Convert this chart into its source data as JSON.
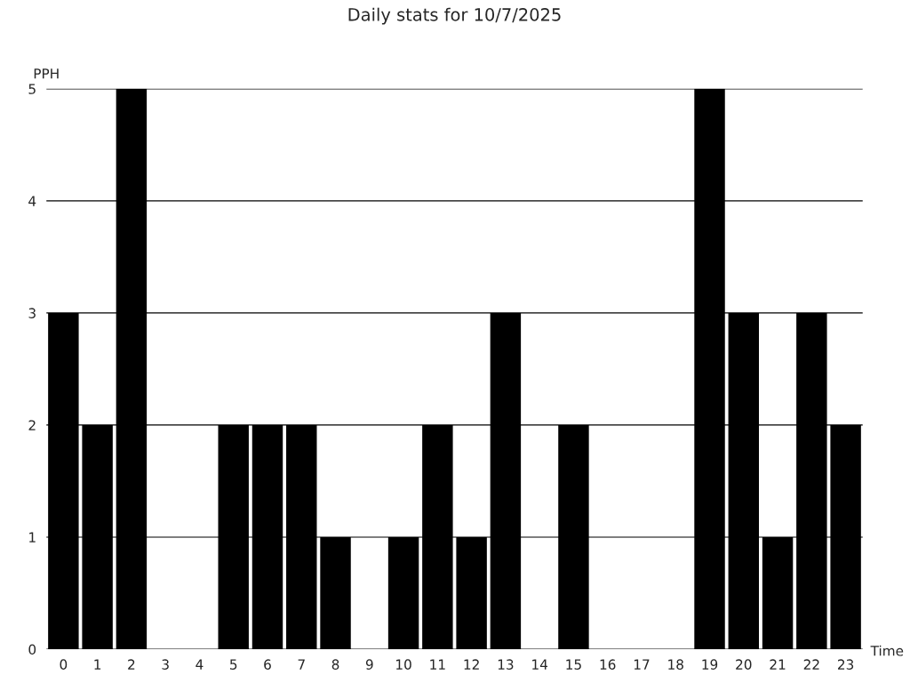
{
  "chart_data": {
    "type": "bar",
    "title": "Daily stats for 10/7/2025",
    "xlabel": "Time",
    "ylabel": "PPH",
    "categories": [
      "0",
      "1",
      "2",
      "3",
      "4",
      "5",
      "6",
      "7",
      "8",
      "9",
      "10",
      "11",
      "12",
      "13",
      "14",
      "15",
      "16",
      "17",
      "18",
      "19",
      "20",
      "21",
      "22",
      "23"
    ],
    "values": [
      3,
      2,
      5,
      0,
      0,
      2,
      2,
      2,
      1,
      0,
      1,
      2,
      1,
      3,
      0,
      2,
      0,
      0,
      0,
      5,
      3,
      1,
      3,
      2
    ],
    "color": "#000000",
    "ylim": [
      0,
      5
    ],
    "yticks": [
      0,
      1,
      2,
      3,
      4,
      5
    ],
    "grid": "y",
    "legend": false
  }
}
